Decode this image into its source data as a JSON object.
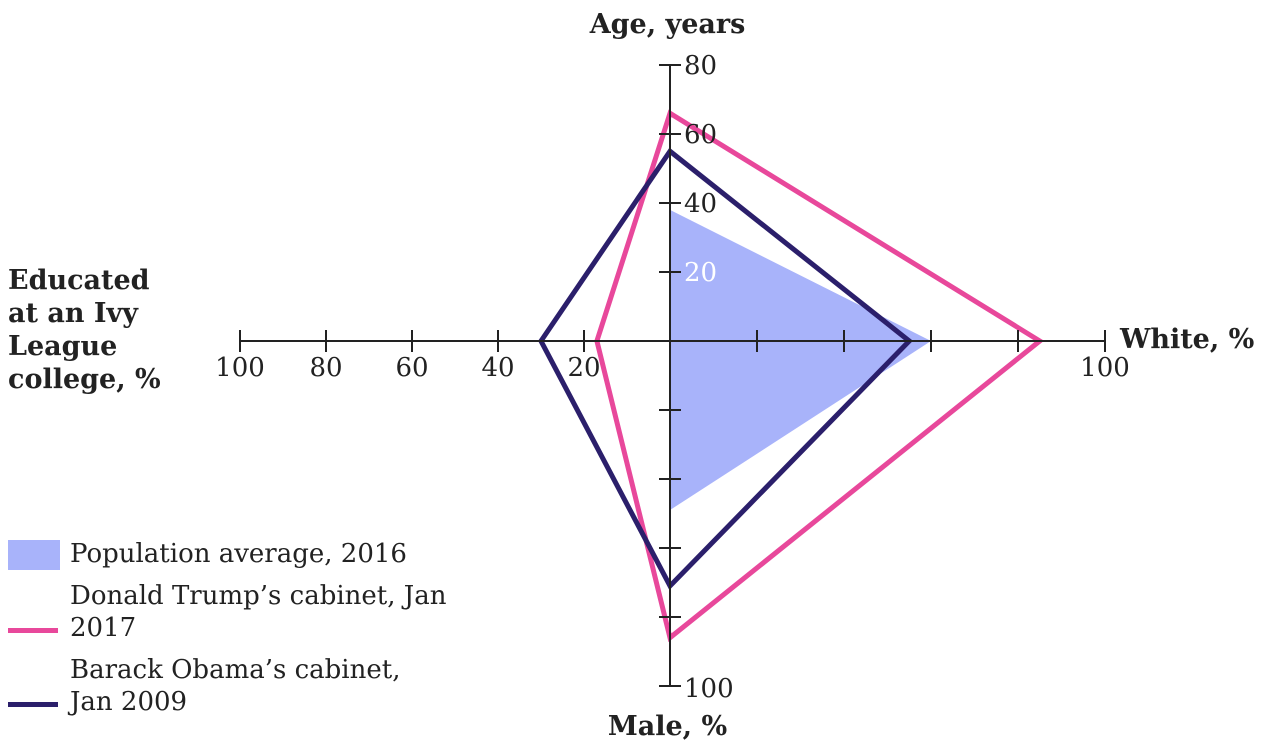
{
  "chart_data": {
    "type": "radar",
    "axes": [
      {
        "label": "Age, years",
        "lim": [
          0,
          80
        ],
        "ticks": [
          {
            "value": 0,
            "label": null
          },
          20,
          40,
          60,
          80
        ]
      },
      {
        "label": "White, %",
        "lim": [
          0,
          100
        ],
        "ticks": [
          {
            "value": 20,
            "label": null
          },
          {
            "value": 40,
            "label": null
          },
          {
            "value": 60,
            "label": null
          },
          {
            "value": 80,
            "label": null
          },
          100
        ]
      },
      {
        "label": "Male, %",
        "lim": [
          0,
          100
        ],
        "ticks": [
          {
            "value": 20,
            "label": null
          },
          {
            "value": 40,
            "label": null
          },
          {
            "value": 60,
            "label": null
          },
          {
            "value": 80,
            "label": null
          },
          100
        ]
      },
      {
        "label": "Educated at an Ivy League college, %",
        "lim": [
          0,
          100
        ],
        "ticks": [
          20,
          40,
          60,
          80,
          100
        ]
      }
    ],
    "series": [
      {
        "name": "Population average, 2016",
        "color": "#a8b3fa",
        "fill": true,
        "values": [
          38,
          60,
          49,
          0
        ]
      },
      {
        "name": "Donald Trump’s cabinet, Jan 2017",
        "color": "#e8489b",
        "fill": false,
        "values": [
          66,
          85,
          86,
          17
        ]
      },
      {
        "name": "Barack Obama’s cabinet, Jan 2009",
        "color": "#2b1f6b",
        "fill": false,
        "values": [
          55,
          55,
          71,
          30
        ]
      }
    ],
    "legend": "bottom-left"
  }
}
